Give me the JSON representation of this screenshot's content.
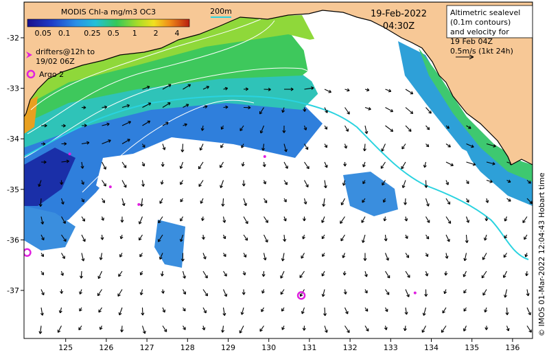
{
  "colorbar": {
    "title": "MODIS Chl-a mg/m3 OC3",
    "ticks": [
      "0.05",
      "0.1",
      "0.25",
      "0.5",
      "1",
      "2",
      "4"
    ]
  },
  "scale_label": "200m",
  "date": "19-Feb-2022",
  "time": "04:30Z",
  "legend_box": {
    "lines": [
      "Altimetric sealevel",
      "(0.1m contours)",
      "and velocity for",
      "19 Feb 04Z",
      "0.5m/s (1kt 24h)"
    ]
  },
  "drifters_label": [
    "drifters@12h to",
    "19/02 06Z"
  ],
  "argo_label": "Argo 2",
  "credit": "© IMOS 01-Mar-2022 12:04:43 Hobart time",
  "axes": {
    "x_ticks": [
      "125",
      "126",
      "127",
      "128",
      "129",
      "130",
      "131",
      "132",
      "133",
      "134",
      "135",
      "136"
    ],
    "y_ticks": [
      "-32",
      "-33",
      "-34",
      "-35",
      "-36",
      "-37"
    ]
  },
  "colors": {
    "land": "#f7c896",
    "coast": "#000000",
    "contour": "#ffffff",
    "isobath": "#2ad3e0",
    "marker": "#e020e0",
    "arrow": "#000000"
  },
  "argo_floats": [
    {
      "lon": 124.05,
      "lat": -36.25
    },
    {
      "lon": 130.8,
      "lat": -37.1
    }
  ],
  "drifters": [
    {
      "lon": 125.1,
      "lat": -34.3
    },
    {
      "lon": 126.1,
      "lat": -34.95
    },
    {
      "lon": 126.8,
      "lat": -35.3
    },
    {
      "lon": 129.9,
      "lat": -34.35
    },
    {
      "lon": 133.6,
      "lat": -37.05
    }
  ]
}
